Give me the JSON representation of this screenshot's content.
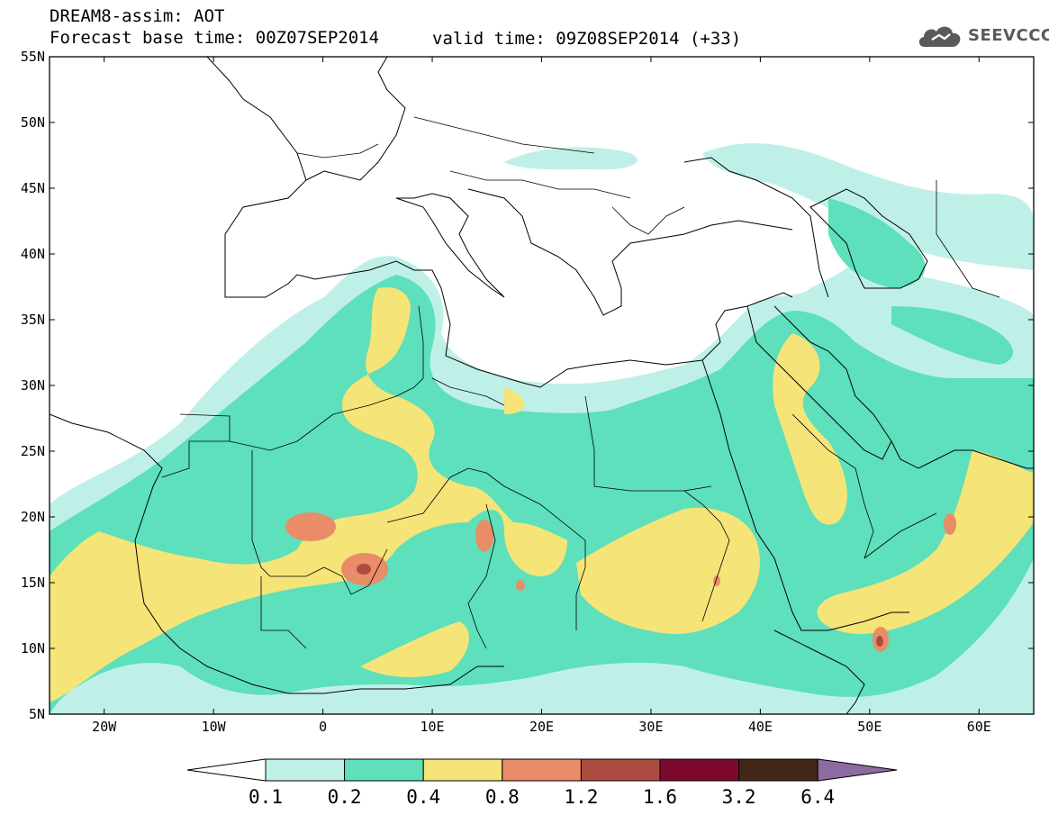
{
  "header": {
    "line1": "DREAM8-assim: AOT",
    "line2": "Forecast base time: 00Z07SEP2014",
    "valid": "valid time: 09Z08SEP2014 (+33)"
  },
  "logo": {
    "text": "SEEVCCC",
    "icon": "cloud-icon"
  },
  "map": {
    "lon_range": [
      -25,
      65
    ],
    "lat_range": [
      5,
      55
    ],
    "lat_labels": [
      "55N",
      "50N",
      "45N",
      "40N",
      "35N",
      "30N",
      "25N",
      "20N",
      "15N",
      "10N",
      "5N"
    ],
    "lon_labels": [
      "20W",
      "10W",
      "0",
      "10E",
      "20E",
      "30E",
      "40E",
      "50E",
      "60E"
    ]
  },
  "colorbar": {
    "labels": [
      "0.1",
      "0.2",
      "0.4",
      "0.8",
      "1.2",
      "1.6",
      "3.2",
      "6.4"
    ],
    "colors": [
      "#bff0e8",
      "#5de0bb",
      "#f5e477",
      "#e98c68",
      "#ac4b40",
      "#7d0a2c",
      "#412716",
      "#8c6ba3"
    ]
  }
}
